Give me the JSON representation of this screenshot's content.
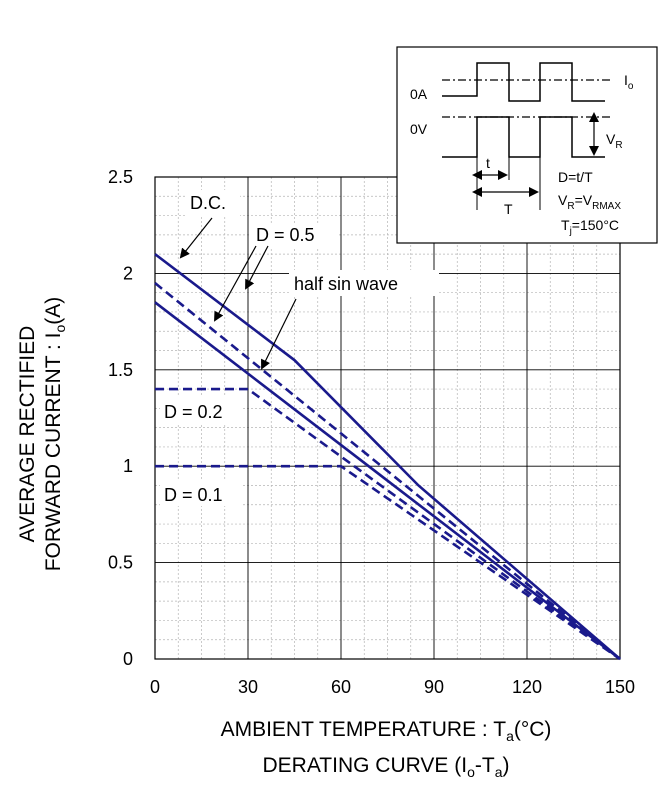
{
  "chart_data": {
    "type": "line",
    "title": "",
    "caption": "DERATING CURVE (I",
    "caption_sub1": "o",
    "caption_mid": "-T",
    "caption_sub2": "a",
    "caption_end": ")",
    "xlabel": "AMBIENT TEMPERATURE : T",
    "xlabel_sub": "a",
    "xlabel_end": "(°C)",
    "ylabel_line1": "AVERAGE RECTIFIED",
    "ylabel_line2": "FORWARD CURRENT : I",
    "ylabel_sub": "o",
    "ylabel_end": "(A)",
    "xlim": [
      0,
      150
    ],
    "ylim": [
      0,
      2.5
    ],
    "xticks": [
      "0",
      "30",
      "60",
      "90",
      "120",
      "150"
    ],
    "yticks": [
      "0",
      "0.5",
      "1",
      "1.5",
      "2",
      "2.5"
    ],
    "grid": true,
    "line_color": "#1a1a8c",
    "series": [
      {
        "name": "D.C.",
        "style": "solid",
        "x": [
          0,
          45,
          85,
          150
        ],
        "y": [
          2.1,
          1.55,
          0.9,
          0
        ]
      },
      {
        "name": "D = 0.5",
        "style": "dashed",
        "x": [
          0,
          150
        ],
        "y": [
          1.95,
          0
        ]
      },
      {
        "name": "half sin wave",
        "style": "solid",
        "x": [
          0,
          150
        ],
        "y": [
          1.85,
          0
        ]
      },
      {
        "name": "D = 0.2",
        "style": "dashed",
        "x": [
          0,
          30,
          150
        ],
        "y": [
          1.4,
          1.4,
          0
        ]
      },
      {
        "name": "D = 0.1",
        "style": "dashed",
        "x": [
          0,
          60,
          150
        ],
        "y": [
          1.0,
          1.0,
          0
        ]
      }
    ],
    "annotations": [
      "D.C.",
      "D = 0.5",
      "half sin wave",
      "D = 0.2",
      "D = 0.1"
    ]
  },
  "inset": {
    "label_0a": "0A",
    "label_0v": "0V",
    "label_io": "I",
    "label_io_sub": "o",
    "label_vr": "V",
    "label_vr_sub": "R",
    "label_t_small": "t",
    "label_t_big": "T",
    "eq1": "D=t/T",
    "eq2_a": "V",
    "eq2_a_sub": "R",
    "eq2_b": "=V",
    "eq2_b_sub": "RMAX",
    "eq3_a": "T",
    "eq3_a_sub": "j",
    "eq3_b": "=150°C"
  }
}
